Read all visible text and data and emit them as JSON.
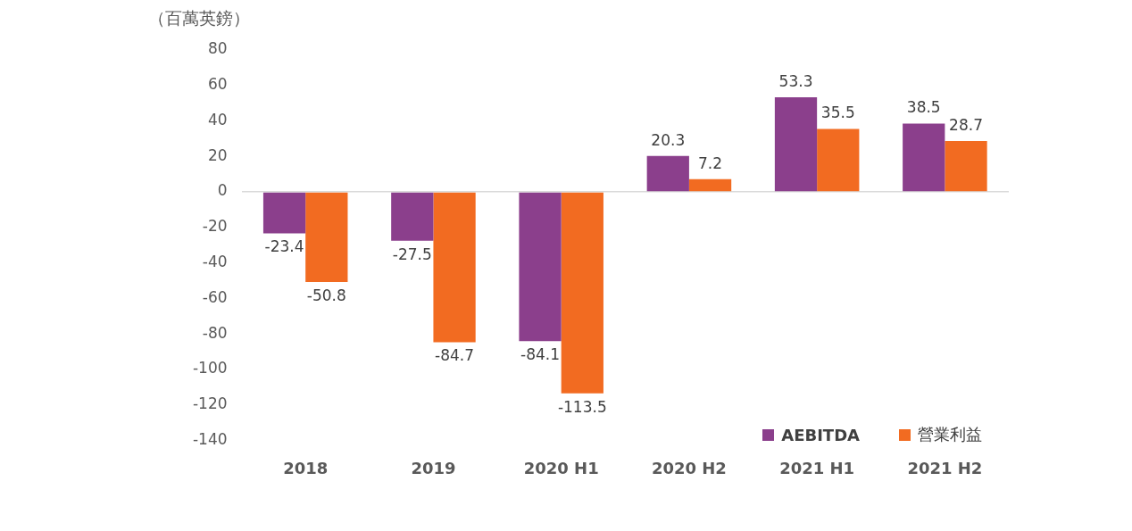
{
  "chart_data": {
    "type": "bar",
    "ylabel": "（百萬英鎊）",
    "categories": [
      "2018",
      "2019",
      "2020 H1",
      "2020 H2",
      "2021 H1",
      "2021 H2"
    ],
    "series": [
      {
        "name": "AEBITDA",
        "color": "#8b3f8c",
        "values": [
          -23.4,
          -27.5,
          -84.1,
          20.3,
          53.3,
          38.5
        ]
      },
      {
        "name": "營業利益",
        "color": "#f26b21",
        "values": [
          -50.8,
          -84.7,
          -113.5,
          7.2,
          35.5,
          28.7
        ]
      }
    ],
    "ylim": [
      -140,
      80
    ],
    "yticks": [
      -140,
      -120,
      -100,
      -80,
      -60,
      -40,
      -20,
      0,
      20,
      40,
      60,
      80
    ],
    "data_labels": true,
    "legend": "bottom right"
  }
}
